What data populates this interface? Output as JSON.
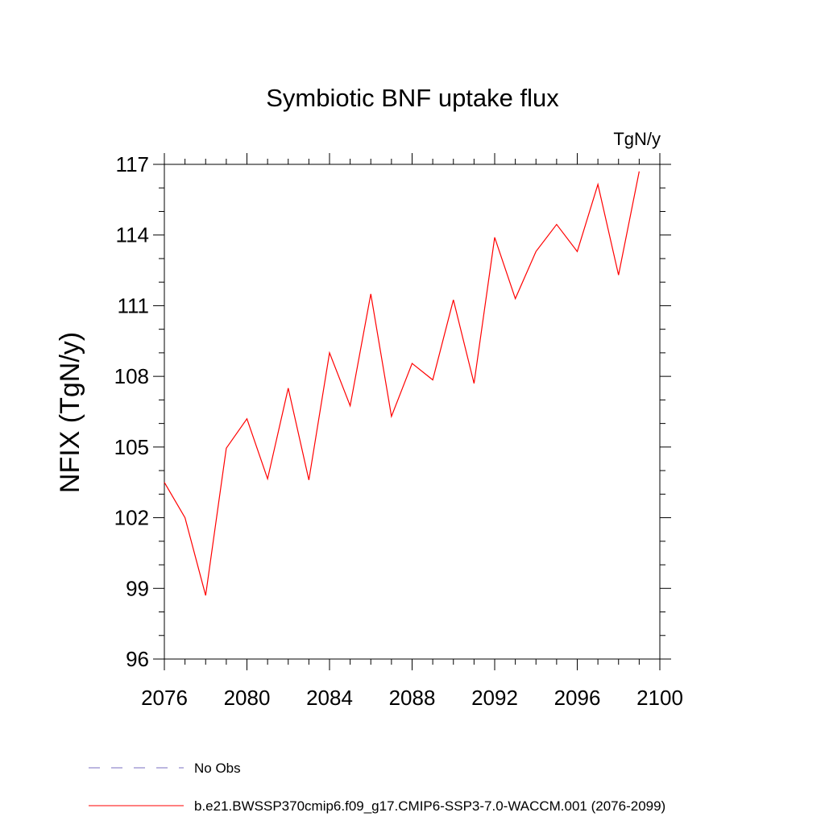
{
  "chart_data": {
    "type": "line",
    "title": "Symbiotic BNF uptake flux",
    "units": "TgN/y",
    "ylabel": "NFIX  (TgN/y)",
    "xlabel": "",
    "xlim": [
      2076,
      2100
    ],
    "ylim": [
      96,
      117
    ],
    "x_ticks": [
      2076,
      2080,
      2084,
      2088,
      2092,
      2096,
      2100
    ],
    "y_ticks": [
      96,
      99,
      102,
      105,
      108,
      111,
      114,
      117
    ],
    "x_tick_labels": [
      "2076",
      "2080",
      "2084",
      "2088",
      "2092",
      "2096",
      "2100"
    ],
    "y_tick_labels": [
      "96",
      "99",
      "102",
      "105",
      "108",
      "111",
      "114",
      "117"
    ],
    "grid": false,
    "series": [
      {
        "name": "b.e21.BWSSP370cmip6.f09_g17.CMIP6-SSP3-7.0-WACCM.001 (2076-2099)",
        "color": "#ff0000",
        "style": "solid",
        "x": [
          2076,
          2077,
          2078,
          2079,
          2080,
          2081,
          2082,
          2083,
          2084,
          2085,
          2086,
          2087,
          2088,
          2089,
          2090,
          2091,
          2092,
          2093,
          2094,
          2095,
          2096,
          2097,
          2098,
          2099
        ],
        "values": [
          103.5,
          102.0,
          98.7,
          104.95,
          106.2,
          103.65,
          107.5,
          103.6,
          109.0,
          106.75,
          111.5,
          106.3,
          108.55,
          107.85,
          111.25,
          107.7,
          113.9,
          111.3,
          113.3,
          114.45,
          113.3,
          116.15,
          112.3,
          116.7
        ]
      }
    ],
    "legend": [
      {
        "label": "No Obs",
        "color": "#7a6fc0",
        "style": "dashed"
      },
      {
        "label": "b.e21.BWSSP370cmip6.f09_g17.CMIP6-SSP3-7.0-WACCM.001 (2076-2099)",
        "color": "#ff0000",
        "style": "solid"
      }
    ]
  }
}
